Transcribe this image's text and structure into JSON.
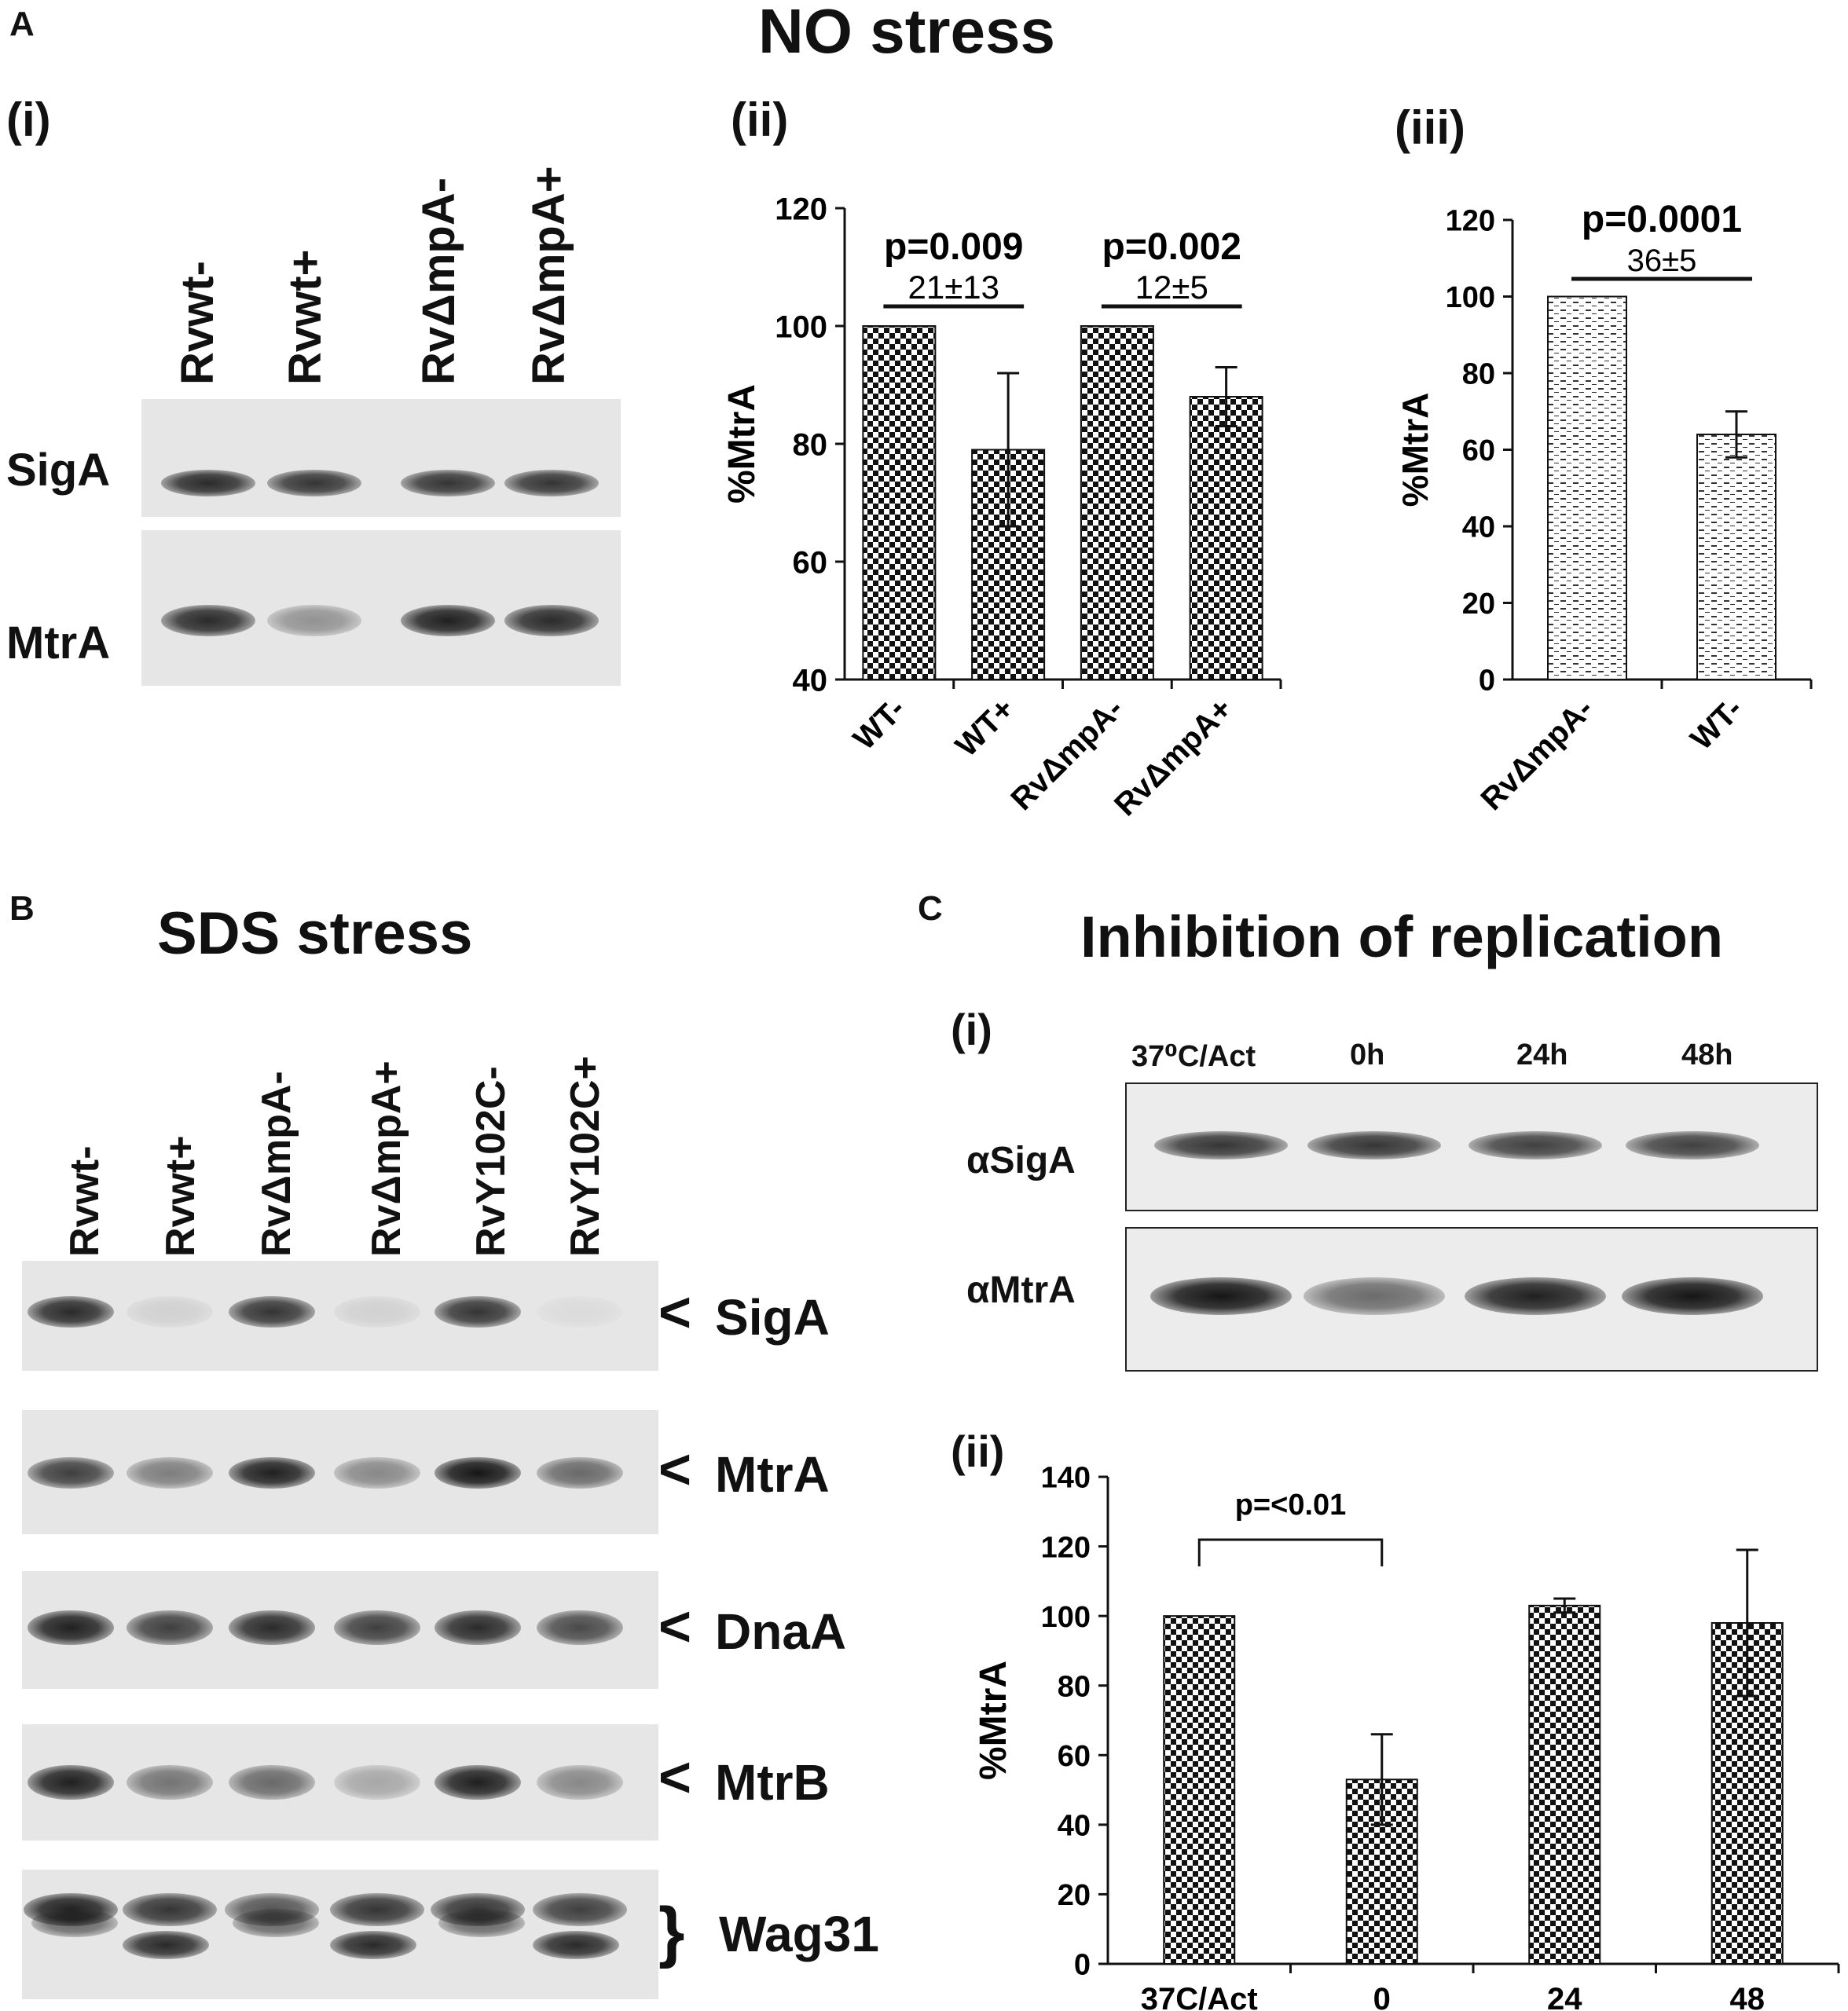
{
  "panel_letters": {
    "a": "A",
    "b": "B",
    "c": "C"
  },
  "titles": {
    "no_stress": "NO stress",
    "sds_stress": "SDS stress",
    "inhibition": "Inhibition of replication"
  },
  "subpanels": {
    "a_i": "(i)",
    "a_ii": "(ii)",
    "a_iii": "(iii)",
    "c_i": "(i)",
    "c_ii": "(ii)"
  },
  "blot_a": {
    "lanes": [
      "Rvwt-",
      "Rvwt+",
      "RvΔmpA-",
      "RvΔmpA+"
    ],
    "rows": [
      "SigA",
      "MtrA"
    ],
    "sigA_intensity": [
      0.9,
      0.85,
      0.85,
      0.85
    ],
    "mtrA_intensity": [
      0.9,
      0.4,
      0.95,
      0.9
    ]
  },
  "blot_b": {
    "lanes": [
      "Rvwt-",
      "Rvwt+",
      "RvΔmpA-",
      "RvΔmpA+",
      "RvY102C-",
      "RvY102C+"
    ],
    "rows": [
      "SigA",
      "MtrA",
      "DnaA",
      "MtrB",
      "Wag31"
    ],
    "row_marks": [
      "<",
      "<",
      "<",
      "<",
      "}"
    ],
    "sigA_intensity": [
      0.9,
      0.1,
      0.85,
      0.1,
      0.85,
      0.05
    ],
    "mtrA_intensity": [
      0.8,
      0.5,
      0.95,
      0.45,
      1.0,
      0.6
    ],
    "dnaA_intensity": [
      0.95,
      0.8,
      0.9,
      0.8,
      0.9,
      0.75
    ],
    "mtrB_intensity": [
      0.95,
      0.55,
      0.6,
      0.3,
      0.95,
      0.45
    ]
  },
  "blot_c": {
    "lanes": [
      "37⁰C/Act",
      "0h",
      "24h",
      "48h"
    ],
    "rows": [
      "αSigA",
      "αMtrA"
    ],
    "sigA_intensity": [
      0.85,
      0.85,
      0.8,
      0.8
    ],
    "mtrA_intensity": [
      1.0,
      0.6,
      0.95,
      1.0
    ]
  },
  "chart_data": [
    {
      "id": "A-ii",
      "type": "bar",
      "categories": [
        "WT-",
        "WT+",
        "RvΔmpA-",
        "RvΔmpA+"
      ],
      "values": [
        100,
        79,
        100,
        88
      ],
      "errors": [
        0,
        13,
        0,
        5
      ],
      "ylabel": "%MtrA",
      "ylim": [
        40,
        120
      ],
      "yticks": [
        40,
        60,
        80,
        100,
        120
      ],
      "pattern": "checker",
      "annotations": [
        {
          "from": 0,
          "to": 1,
          "p": "p=0.009",
          "diff": "21±13"
        },
        {
          "from": 2,
          "to": 3,
          "p": "p=0.002",
          "diff": "12±5"
        }
      ]
    },
    {
      "id": "A-iii",
      "type": "bar",
      "categories": [
        "RvΔmpA-",
        "WT-"
      ],
      "values": [
        100,
        64
      ],
      "errors": [
        0,
        6
      ],
      "ylabel": "%MtrA",
      "ylim": [
        0,
        120
      ],
      "yticks": [
        0,
        20,
        40,
        60,
        80,
        100,
        120
      ],
      "pattern": "dash",
      "annotations": [
        {
          "from": 0,
          "to": 1,
          "p": "p=0.0001",
          "diff": "36±5"
        }
      ]
    },
    {
      "id": "C-ii",
      "type": "bar",
      "categories": [
        "37C/Act",
        "0",
        "24",
        "48"
      ],
      "values": [
        100,
        53,
        103,
        98
      ],
      "errors": [
        0,
        13,
        2,
        21
      ],
      "ylabel": "%MtrA",
      "ylim": [
        0,
        140
      ],
      "yticks": [
        0,
        20,
        40,
        60,
        80,
        100,
        120,
        140
      ],
      "pattern": "checker",
      "annotations": [
        {
          "from": 0,
          "to": 1,
          "p": "p=<0.01",
          "bracket": true
        }
      ]
    }
  ]
}
